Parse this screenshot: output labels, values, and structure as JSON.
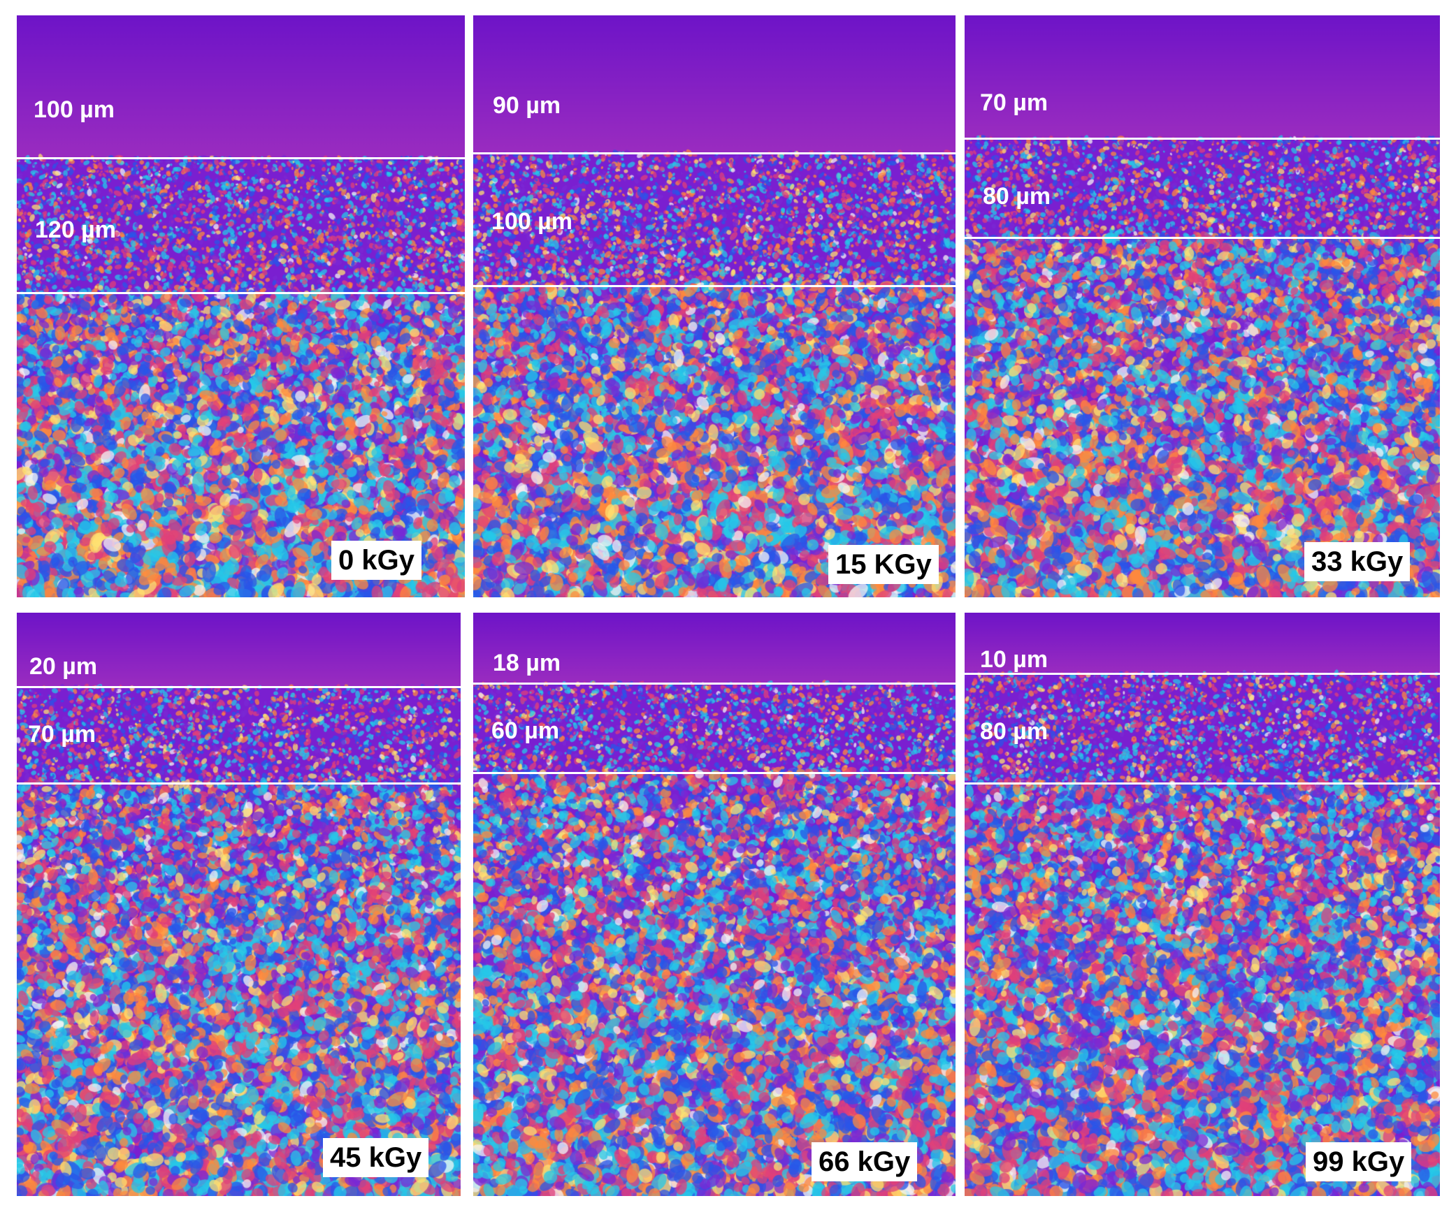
{
  "panels": [
    {
      "dose": "0 kGy",
      "layers": [
        "100 µm",
        "120 µm"
      ]
    },
    {
      "dose": "15 KGy",
      "layers": [
        "90 µm",
        "100 µm"
      ]
    },
    {
      "dose": "33 kGy",
      "layers": [
        "70 µm",
        "80 µm"
      ]
    },
    {
      "dose": "45 kGy",
      "layers": [
        "20 µm",
        "70 µm"
      ]
    },
    {
      "dose": "66 kGy",
      "layers": [
        "18 µm",
        "60 µm"
      ]
    },
    {
      "dose": "99 kGy",
      "layers": [
        "10 µm",
        "80 µm"
      ]
    }
  ],
  "colors": {
    "surface": "#7a1fd0",
    "mottle_palette": [
      "#25c8e8",
      "#2a55e8",
      "#e0407a",
      "#ff8a3c",
      "#ffe070",
      "#f4f4f4",
      "#7b28d4"
    ]
  }
}
